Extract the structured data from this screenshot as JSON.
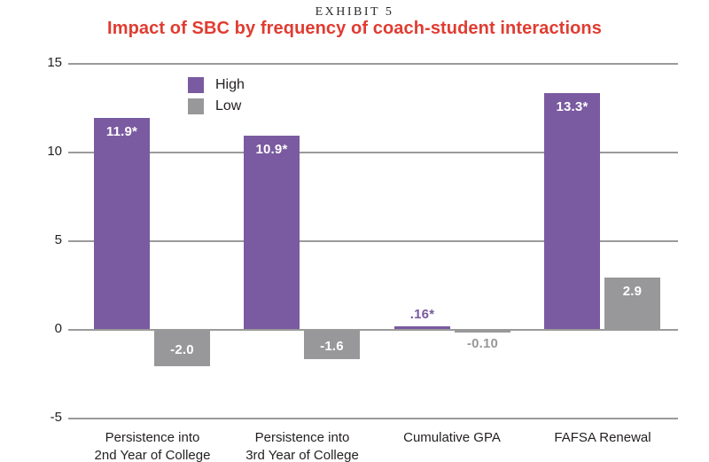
{
  "header": {
    "exhibit_label": "EXHIBIT 5",
    "title": "Impact of SBC by frequency of coach-student interactions"
  },
  "colors": {
    "high_purple": "#7a5aa0",
    "low_gray": "#98989a",
    "gridline": "#9a9a9a",
    "title_red": "#e03c31",
    "text_dark": "#231f20",
    "bar_label_inside": "#ffffff"
  },
  "legend": {
    "items": [
      {
        "label": "High",
        "color": "#7a5aa0"
      },
      {
        "label": "Low",
        "color": "#98989a"
      }
    ]
  },
  "chart_data": {
    "type": "bar",
    "exhibit": "EXHIBIT 5",
    "title": "Impact of SBC by frequency of coach-student interactions",
    "categories": [
      "Persistence into\n2nd Year of College",
      "Persistence into\n3rd Year of College",
      "Cumulative GPA",
      "FAFSA Renewal"
    ],
    "series": [
      {
        "name": "High",
        "color": "#7a5aa0",
        "values": [
          11.9,
          10.9,
          0.16,
          13.3
        ],
        "labels": [
          "11.9*",
          "10.9*",
          ".16*",
          "13.3*"
        ],
        "label_pos": [
          "inside",
          "inside",
          "above",
          "inside"
        ]
      },
      {
        "name": "Low",
        "color": "#98989a",
        "values": [
          -2.0,
          -1.6,
          -0.1,
          2.9
        ],
        "labels": [
          "-2.0",
          "-1.6",
          "-0.10",
          "2.9"
        ],
        "label_pos": [
          "inside",
          "inside",
          "below",
          "inside"
        ]
      }
    ],
    "xlabel": "",
    "ylabel": "",
    "ylim": [
      -5,
      15
    ],
    "yticks": [
      15,
      10,
      5,
      0,
      -5
    ],
    "grid": true,
    "legend_position": "top-left-inside"
  }
}
